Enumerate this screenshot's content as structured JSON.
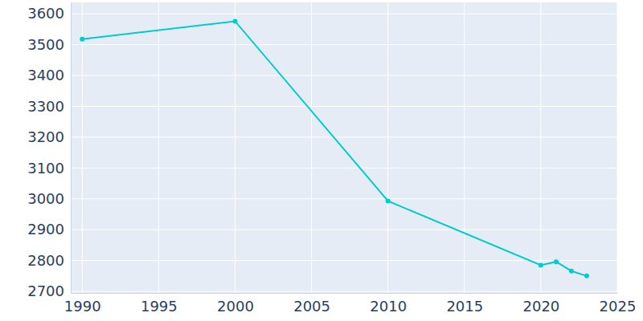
{
  "chart_data": {
    "type": "line",
    "x": [
      1990,
      2000,
      2010,
      2020,
      2021,
      2022,
      2023
    ],
    "values": [
      3518,
      3576,
      2993,
      2785,
      2796,
      2766,
      2750
    ],
    "color": "#00cccc",
    "marker": "circle",
    "xlim": [
      1989.25,
      2025
    ],
    "ylim": [
      2695,
      3637
    ],
    "xticks": [
      1990,
      1995,
      2000,
      2005,
      2010,
      2015,
      2020,
      2025
    ],
    "yticks": [
      2700,
      2800,
      2900,
      3000,
      3100,
      3200,
      3300,
      3400,
      3500,
      3600
    ],
    "grid": true
  }
}
